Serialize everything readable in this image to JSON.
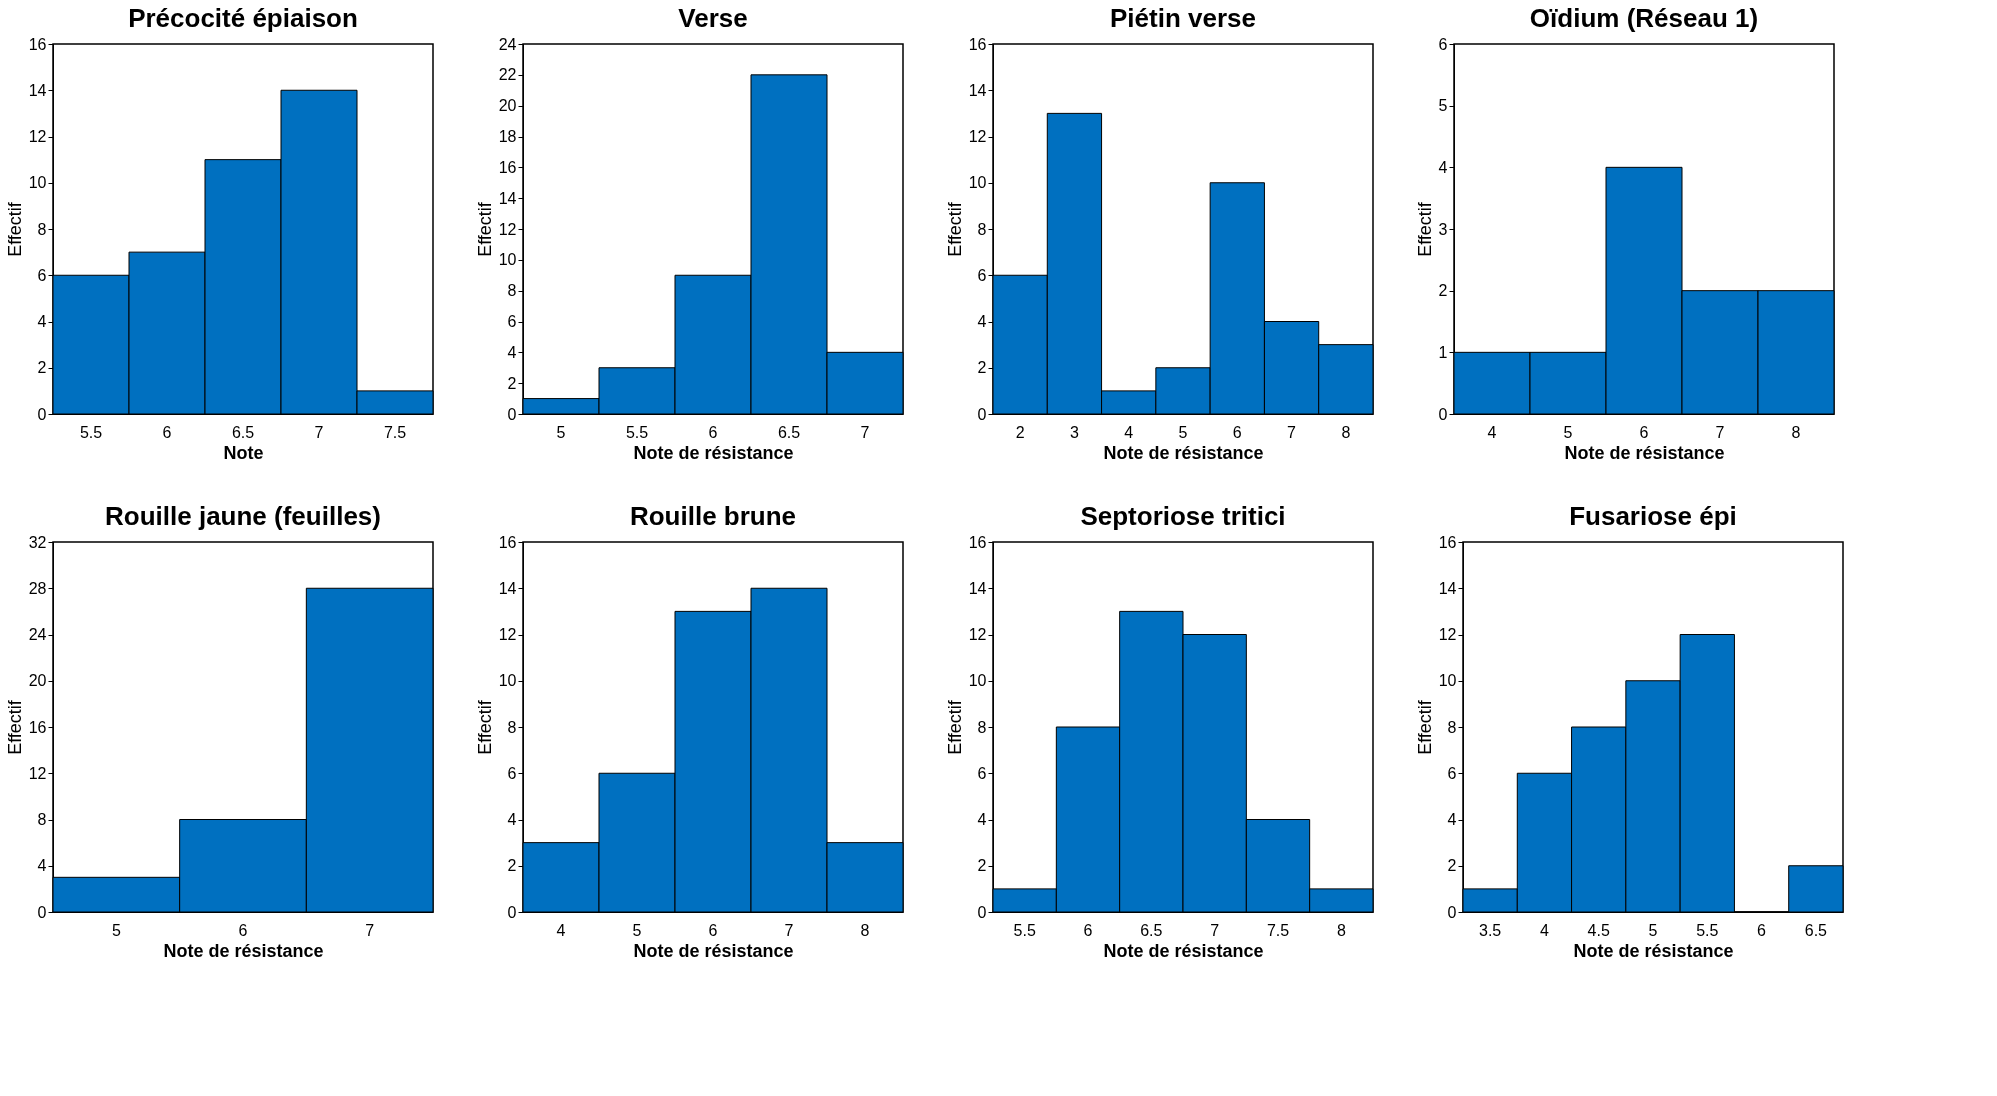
{
  "chart_data": [
    {
      "type": "bar",
      "title": "Précocité épiaison",
      "xlabel": "Note",
      "ylabel": "Effectif",
      "categories": [
        "5.5",
        "6",
        "6.5",
        "7",
        "7.5"
      ],
      "values": [
        6,
        7,
        11,
        14,
        1
      ],
      "color": "#0070c0",
      "ylim": [
        0,
        16
      ],
      "yticks": [
        0,
        2,
        4,
        6,
        8,
        10,
        12,
        14,
        16
      ]
    },
    {
      "type": "bar",
      "title": "Verse",
      "xlabel": "Note de résistance",
      "ylabel": "Effectif",
      "categories": [
        "5",
        "5.5",
        "6",
        "6.5",
        "7"
      ],
      "values": [
        1,
        3,
        9,
        22,
        4
      ],
      "color": "#0070c0",
      "ylim": [
        0,
        24
      ],
      "yticks": [
        0,
        2,
        4,
        6,
        8,
        10,
        12,
        14,
        16,
        18,
        20,
        22,
        24
      ]
    },
    {
      "type": "bar",
      "title": "Piétin verse",
      "xlabel": "Note de résistance",
      "ylabel": "Effectif",
      "categories": [
        "2",
        "3",
        "4",
        "5",
        "6",
        "7",
        "8"
      ],
      "values": [
        6,
        13,
        1,
        2,
        10,
        4,
        3
      ],
      "color": "#0070c0",
      "ylim": [
        0,
        16
      ],
      "yticks": [
        0,
        2,
        4,
        6,
        8,
        10,
        12,
        14,
        16
      ]
    },
    {
      "type": "bar",
      "title": "Oïdium (Réseau 1)",
      "xlabel": "Note de résistance",
      "ylabel": "Effectif",
      "categories": [
        "4",
        "5",
        "6",
        "7",
        "8"
      ],
      "values": [
        1,
        1,
        4,
        2,
        2
      ],
      "color": "#0070c0",
      "ylim": [
        0,
        6
      ],
      "yticks": [
        0,
        1,
        2,
        3,
        4,
        5,
        6
      ]
    },
    {
      "type": "bar",
      "title": "Rouille jaune (feuilles)",
      "xlabel": "Note de résistance",
      "ylabel": "Effectif",
      "categories": [
        "5",
        "6",
        "7"
      ],
      "values": [
        3,
        8,
        28
      ],
      "color": "#0070c0",
      "ylim": [
        0,
        32
      ],
      "yticks": [
        0,
        4,
        8,
        12,
        16,
        20,
        24,
        28,
        32
      ]
    },
    {
      "type": "bar",
      "title": "Rouille brune",
      "xlabel": "Note de résistance",
      "ylabel": "Effectif",
      "categories": [
        "4",
        "5",
        "6",
        "7",
        "8"
      ],
      "values": [
        3,
        6,
        13,
        14,
        3
      ],
      "color": "#0070c0",
      "ylim": [
        0,
        16
      ],
      "yticks": [
        0,
        2,
        4,
        6,
        8,
        10,
        12,
        14,
        16
      ]
    },
    {
      "type": "bar",
      "title": "Septoriose tritici",
      "xlabel": "Note de résistance",
      "ylabel": "Effectif",
      "categories": [
        "5.5",
        "6",
        "6.5",
        "7",
        "7.5",
        "8"
      ],
      "values": [
        1,
        8,
        13,
        12,
        4,
        1
      ],
      "color": "#0070c0",
      "ylim": [
        0,
        16
      ],
      "yticks": [
        0,
        2,
        4,
        6,
        8,
        10,
        12,
        14,
        16
      ]
    },
    {
      "type": "bar",
      "title": "Fusariose épi",
      "xlabel": "Note de résistance",
      "ylabel": "Effectif",
      "categories": [
        "3.5",
        "4",
        "4.5",
        "5",
        "5.5",
        "6",
        "6.5"
      ],
      "values": [
        1,
        6,
        8,
        10,
        12,
        0,
        2
      ],
      "color": "#0070c0",
      "ylim": [
        0,
        16
      ],
      "yticks": [
        0,
        2,
        4,
        6,
        8,
        10,
        12,
        14,
        16
      ]
    }
  ]
}
